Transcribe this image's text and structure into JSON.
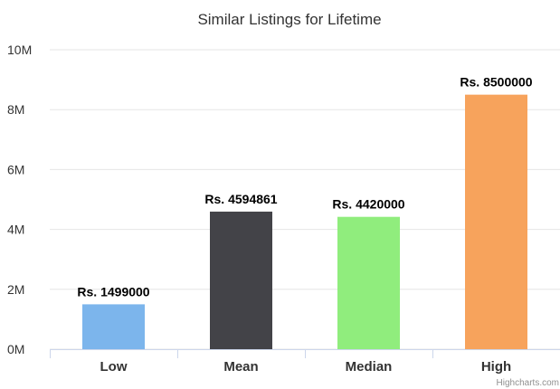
{
  "chart_data": {
    "type": "bar",
    "title": "Similar Listings for Lifetime",
    "categories": [
      "Low",
      "Mean",
      "Median",
      "High"
    ],
    "values": [
      1499000,
      4594861,
      4420000,
      8500000
    ],
    "data_labels": [
      "Rs. 1499000",
      "Rs. 4594861",
      "Rs. 4420000",
      "Rs. 8500000"
    ],
    "colors": [
      "#7cb5ec",
      "#434348",
      "#90ed7d",
      "#f7a35c"
    ],
    "ylim": [
      0,
      10000000
    ],
    "yticks": [
      0,
      2000000,
      4000000,
      6000000,
      8000000,
      10000000
    ],
    "ytick_labels": [
      "0M",
      "2M",
      "4M",
      "6M",
      "8M",
      "10M"
    ],
    "xlabel": "",
    "ylabel": "",
    "grid": true,
    "legend": "none"
  },
  "credits": "Highcharts.com",
  "colors": {
    "grid": "#e6e6e6",
    "axis": "#ccd6eb",
    "text": "#333333"
  }
}
